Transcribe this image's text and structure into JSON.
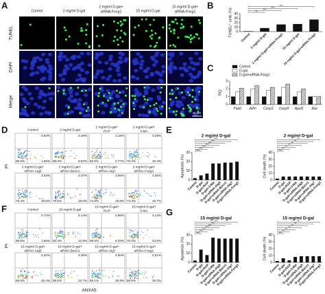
{
  "panels": {
    "A": {
      "label": "A",
      "columns": [
        [
          "Control"
        ],
        [
          "2 mg/ml D-gal"
        ],
        [
          "2 mg/ml D-gal+",
          "siRNA-Foxg1"
        ],
        [
          "15 mg/ml D-gal"
        ],
        [
          "15 mg/ml D-gal+",
          "siRNA-Foxg1"
        ]
      ],
      "rows": [
        "TUNEL",
        "DAPI",
        "Merge"
      ],
      "scale_bar": "40 μm"
    },
    "B": {
      "label": "B",
      "chart": {
        "type": "bar",
        "ylabel": "TUNEL⁺ cells (%)",
        "categories": [
          "Control",
          "2 mg/ml D-gal",
          "2 mg/ml D-gal+siRNA-Foxg1",
          "15 mg/ml D-gal",
          "15 mg/ml D-gal+siRNA-Foxg1"
        ],
        "values": [
          1,
          8,
          16,
          17,
          27
        ],
        "ylim": [
          0,
          40
        ],
        "yticks": [
          0,
          10,
          20,
          30,
          40
        ],
        "color": "#111111",
        "significance": [
          "**",
          "***",
          "***",
          "***",
          "*"
        ]
      }
    },
    "C": {
      "label": "C",
      "chart": {
        "type": "grouped-bar",
        "ylabel": "RQ",
        "categories": [
          "Fadd",
          "Aifm",
          "Casp3",
          "Casp8",
          "Apaf1",
          "Bax"
        ],
        "series": [
          {
            "name": "Control",
            "color": "#111111",
            "values": [
              1,
              1,
              1,
              1,
              1,
              1
            ]
          },
          {
            "name": "D-gal",
            "color": "#ffffff",
            "values": [
              1.6,
              2.0,
              1.8,
              2.2,
              1.6,
              1.0
            ]
          },
          {
            "name": "D-gal+siRNA-Foxg1",
            "color": "#888888",
            "hatch": true,
            "values": [
              2.1,
              2.4,
              2.2,
              2.6,
              2.0,
              1.0
            ]
          }
        ],
        "ylim": [
          0,
          3
        ],
        "yticks": [
          0,
          1,
          2,
          3
        ]
      }
    },
    "D": {
      "label": "D",
      "ylabel": "PI",
      "plots": [
        {
          "title": [
            "Control"
          ],
          "ur": "0.93%",
          "ll": "96.6%",
          "lr": "1.66%"
        },
        {
          "title": [
            "2 mg/ml D-gal"
          ],
          "ur": "2.48%",
          "ll": "88.0%",
          "lr": "8.02%"
        },
        {
          "title": [
            "2 mg/ml D-gal+",
            "RAP"
          ],
          "ur": "2.15%",
          "ll": "92.5%",
          "lr": "4.77%"
        },
        {
          "title": [
            "2 mg/ml D-gal+",
            "3-MA"
          ],
          "ur": "4.29%",
          "ll": "76.2%",
          "lr": "18.4%"
        },
        {
          "title": [
            "2 mg/ml D-gal+",
            "siRNA-Atg5"
          ],
          "ur": "3.63%",
          "ll": "76.4%",
          "lr": "18.5%"
        },
        {
          "title": [
            "2 mg/ml D-gal+",
            "siRNA-Becn1"
          ],
          "ur": "3.47%",
          "ll": "76.5%",
          "lr": "18.6%"
        },
        {
          "title": [
            "2 mg/ml D-gal+",
            "siRNA-Atg7"
          ],
          "ur": "3.96%",
          "ll": "74.9%",
          "lr": "19.8%"
        },
        {
          "title": [
            "2 mg/ml D-gal+",
            "siRNA-Foxg1"
          ],
          "ur": "4.36%",
          "ll": "74.3%",
          "lr": "19.7%"
        }
      ]
    },
    "E": {
      "label": "E",
      "charts": [
        {
          "type": "bar",
          "title": "2 mg/ml D-gal",
          "ylabel": "Apoptosis (%)",
          "categories": [
            "Control",
            "D-gal",
            "D-gal+RAP",
            "D-gal+3-MA",
            "D-gal+siRNA-Atg5",
            "D-gal+siRNA-Becn1",
            "D-gal+siRNA-Atg7",
            "D-gal+siRNA-Foxg1"
          ],
          "values": [
            2,
            5,
            7,
            18,
            18,
            19,
            19,
            20
          ],
          "ylim": [
            0,
            30
          ],
          "yticks": [
            0,
            10,
            20,
            30
          ],
          "color": "#111111",
          "significance": [
            "***",
            "***",
            "***",
            "***",
            "***",
            "***",
            "***"
          ]
        },
        {
          "type": "bar",
          "title": "2 mg/ml D-gal",
          "ylabel": "Cell death (%)",
          "categories": [
            "Control",
            "D-gal",
            "D-gal+RAP",
            "D-gal+3-MA",
            "D-gal+siRNA-Atg5",
            "D-gal+siRNA-Becn1",
            "D-gal+siRNA-Atg7",
            "D-gal+siRNA-Foxg1"
          ],
          "values": [
            2,
            5,
            5,
            5,
            5,
            5,
            5,
            5
          ],
          "ylim": [
            0,
            40
          ],
          "yticks": [
            0,
            10,
            20,
            30,
            40
          ],
          "color": "#111111",
          "significance": [
            "***",
            "**",
            "**",
            "**",
            "**",
            "**",
            "**"
          ]
        }
      ]
    },
    "F": {
      "label": "F",
      "xlabel": "ANXA5",
      "ylabel": "PI",
      "plots": [
        {
          "title": [
            "Control"
          ],
          "ur": "0.73%",
          "ll": "96.6%",
          "lr": "1.66%"
        },
        {
          "title": [
            "15 mg/ml D-gal"
          ],
          "ur": "3.14%",
          "ll": "82.4%",
          "lr": "12.9%"
        },
        {
          "title": [
            "15 mg/ml D-gal+",
            "RAP"
          ],
          "ur": "2.96%",
          "ll": "89.6%",
          "lr": "6.33%"
        },
        {
          "title": [
            "15 mg/ml D-gal+",
            "3-MA"
          ],
          "ur": "4.14%",
          "ll": "70.2%",
          "lr": "24.5%"
        },
        {
          "title": [
            "15 mg/ml D-gal+",
            "siRNA-Atg5"
          ],
          "ur": "4.42%",
          "ll": "68.5%",
          "lr": "25.4%"
        },
        {
          "title": [
            "15 mg/ml D-gal+",
            "siRNA-Becn1"
          ],
          "ur": "4.35%",
          "ll": "69.6%",
          "lr": "24.7%"
        },
        {
          "title": [
            "15 mg/ml D-gal+",
            "siRNA-Atg7"
          ],
          "ur": "4.60%",
          "ll": "68.1%",
          "lr": "25.9%"
        },
        {
          "title": [
            "15 mg/ml D-gal+",
            "siRNA-Foxg1"
          ],
          "ur": "4.51%",
          "ll": "68.9%",
          "lr": "25.3%"
        }
      ]
    },
    "G": {
      "label": "G",
      "charts": [
        {
          "type": "bar",
          "title": "15 mg/ml D-gal",
          "ylabel": "Apoptosis (%)",
          "categories": [
            "Control",
            "D-gal",
            "D-gal+RAP",
            "D-gal+3-MA",
            "D-gal+siRNA-Atg5",
            "D-gal+siRNA-Becn1",
            "D-gal+siRNA-Atg7",
            "D-gal+siRNA-Foxg1"
          ],
          "values": [
            2,
            14,
            8,
            27,
            26,
            26,
            26,
            26
          ],
          "ylim": [
            0,
            30
          ],
          "yticks": [
            0,
            10,
            20,
            30
          ],
          "color": "#111111",
          "significance": [
            "***",
            "***",
            "***",
            "***",
            "***",
            "***",
            "***"
          ]
        },
        {
          "type": "bar",
          "title": "15 mg/ml D-gal",
          "ylabel": "Cell death (%)",
          "categories": [
            "Control",
            "D-gal",
            "D-gal+RAP",
            "D-gal+3-MA",
            "D-gal+siRNA-Atg5",
            "D-gal+siRNA-Becn1",
            "D-gal+siRNA-Atg7",
            "D-gal+siRNA-Foxg1"
          ],
          "values": [
            2,
            6,
            3,
            8,
            9,
            9,
            9,
            9
          ],
          "ylim": [
            0,
            40
          ],
          "yticks": [
            0,
            10,
            20,
            30,
            40
          ],
          "color": "#111111",
          "significance": [
            "***",
            "**",
            "**",
            "**",
            "**",
            "**",
            "**"
          ]
        }
      ]
    }
  }
}
